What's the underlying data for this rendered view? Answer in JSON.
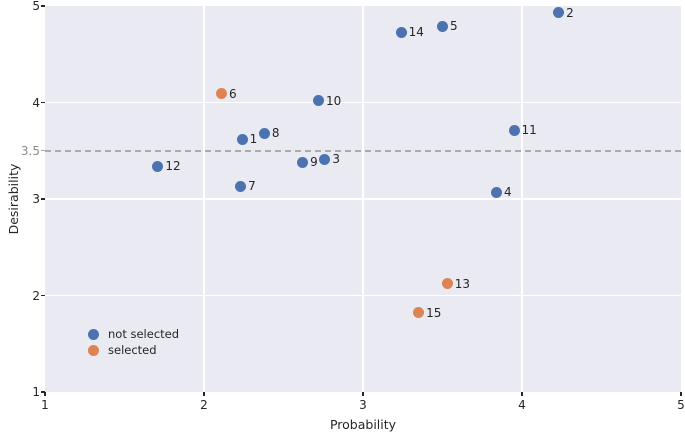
{
  "figure": {
    "background": "#ffffff",
    "plot_background": "#eaeaf2",
    "grid_color": "#ffffff",
    "text_color": "#262626",
    "muted_tick_color": "#8c8c8c",
    "threshold_color": "#ababab",
    "not_selected_color": "#4c72b0",
    "selected_color": "#dd8452"
  },
  "legend": {
    "items": [
      {
        "label": "not selected",
        "color": "#4c72b0"
      },
      {
        "label": "selected",
        "color": "#dd8452"
      }
    ]
  },
  "chart_data": {
    "type": "scatter",
    "title": "",
    "xlabel": "Probability",
    "ylabel": "Desirability",
    "xlim": [
      1,
      5
    ],
    "ylim": [
      1,
      5
    ],
    "x_ticks": [
      1,
      2,
      3,
      4,
      5
    ],
    "y_ticks": [
      1,
      2,
      3,
      3.5,
      4,
      5
    ],
    "muted_y_tick": 3.5,
    "grid_x": [
      2,
      3,
      4
    ],
    "grid_y": [
      2,
      3,
      4
    ],
    "grid": true,
    "legend_position": "lower left",
    "threshold_y": 3.5,
    "series": [
      {
        "name": "not selected",
        "color": "#4c72b0",
        "points": [
          {
            "label": "1",
            "x": 2.24,
            "y": 3.62
          },
          {
            "label": "2",
            "x": 4.23,
            "y": 4.93
          },
          {
            "label": "3",
            "x": 2.76,
            "y": 3.41
          },
          {
            "label": "4",
            "x": 3.84,
            "y": 3.07
          },
          {
            "label": "5",
            "x": 3.5,
            "y": 4.79
          },
          {
            "label": "7",
            "x": 2.23,
            "y": 3.13
          },
          {
            "label": "8",
            "x": 2.38,
            "y": 3.68
          },
          {
            "label": "9",
            "x": 2.62,
            "y": 3.38
          },
          {
            "label": "10",
            "x": 2.72,
            "y": 4.02
          },
          {
            "label": "11",
            "x": 3.95,
            "y": 3.71
          },
          {
            "label": "12",
            "x": 1.71,
            "y": 3.34
          },
          {
            "label": "14",
            "x": 3.24,
            "y": 4.73
          }
        ]
      },
      {
        "name": "selected",
        "color": "#dd8452",
        "points": [
          {
            "label": "6",
            "x": 2.11,
            "y": 4.09
          },
          {
            "label": "13",
            "x": 3.53,
            "y": 2.12
          },
          {
            "label": "15",
            "x": 3.35,
            "y": 1.82
          }
        ]
      }
    ]
  }
}
